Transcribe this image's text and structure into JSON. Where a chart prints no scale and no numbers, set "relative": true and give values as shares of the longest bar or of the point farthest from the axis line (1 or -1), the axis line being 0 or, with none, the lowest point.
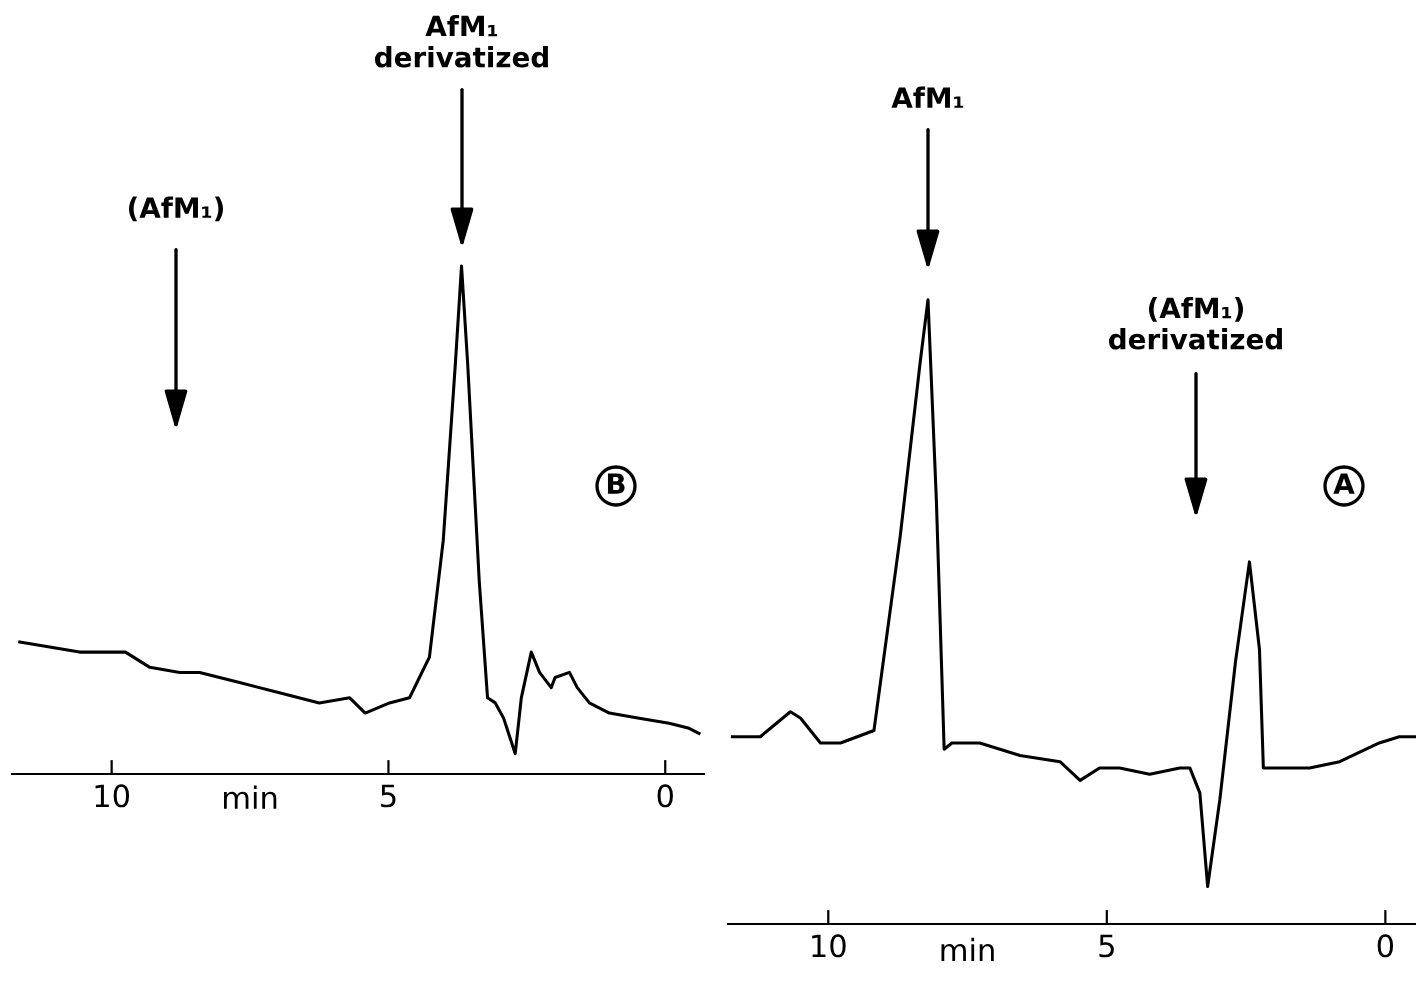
{
  "chart_data": [
    {
      "type": "line",
      "relative": true,
      "xlabel": "min",
      "xlim": [
        11.8,
        -0.7
      ],
      "xticks": [
        10,
        5,
        0
      ],
      "tick_labels": "x",
      "grid": false,
      "x": [
        11.66,
        10.58,
        9.75,
        9.31,
        8.77,
        8.41,
        7.69,
        6.97,
        6.25,
        5.7,
        5.42,
        4.98,
        4.62,
        4.44,
        4.26,
        4.01,
        3.79,
        3.68,
        3.57,
        3.36,
        3.21,
        3.07,
        2.92,
        2.71,
        2.6,
        2.42,
        2.27,
        2.06,
        1.99,
        1.73,
        1.59,
        1.37,
        1.01,
        0.47,
        -0.07,
        -0.43,
        -0.61
      ],
      "series": [
        {
          "color": "#000000",
          "values": [
            0.26,
            0.24,
            0.24,
            0.21,
            0.2,
            0.2,
            0.18,
            0.16,
            0.14,
            0.15,
            0.12,
            0.14,
            0.15,
            0.19,
            0.23,
            0.46,
            0.81,
            1.0,
            0.81,
            0.38,
            0.15,
            0.14,
            0.11,
            0.04,
            0.15,
            0.24,
            0.2,
            0.17,
            0.19,
            0.2,
            0.17,
            0.14,
            0.12,
            0.11,
            0.1,
            0.09,
            0.08
          ]
        }
      ],
      "annotations": [
        "(AfM₁)",
        "AfM₁\nderivatized",
        "B"
      ]
    },
    {
      "type": "line",
      "relative": true,
      "xlabel": "min",
      "xlim": [
        11.8,
        -0.55
      ],
      "xticks": [
        10,
        5,
        0
      ],
      "tick_labels": "x",
      "grid": false,
      "x": [
        11.72,
        11.22,
        10.68,
        10.5,
        10.14,
        9.78,
        9.18,
        8.71,
        8.35,
        8.21,
        8.06,
        7.92,
        7.78,
        7.28,
        6.56,
        5.84,
        5.48,
        5.13,
        4.77,
        4.23,
        3.69,
        3.51,
        3.33,
        3.19,
        2.97,
        2.69,
        2.44,
        2.26,
        2.19,
        1.9,
        1.36,
        0.82,
        0.11,
        -0.25,
        -0.54
      ],
      "series": [
        {
          "color": "#000000",
          "values": [
            0.3,
            0.3,
            0.34,
            0.33,
            0.29,
            0.29,
            0.31,
            0.62,
            0.9,
            1.0,
            0.68,
            0.28,
            0.29,
            0.29,
            0.27,
            0.26,
            0.23,
            0.25,
            0.25,
            0.24,
            0.25,
            0.25,
            0.21,
            0.06,
            0.2,
            0.42,
            0.58,
            0.44,
            0.25,
            0.25,
            0.25,
            0.26,
            0.29,
            0.3,
            0.3
          ]
        }
      ],
      "annotations": [
        "AfM₁",
        "(AfM₁)\nderivatized",
        "A"
      ]
    }
  ]
}
